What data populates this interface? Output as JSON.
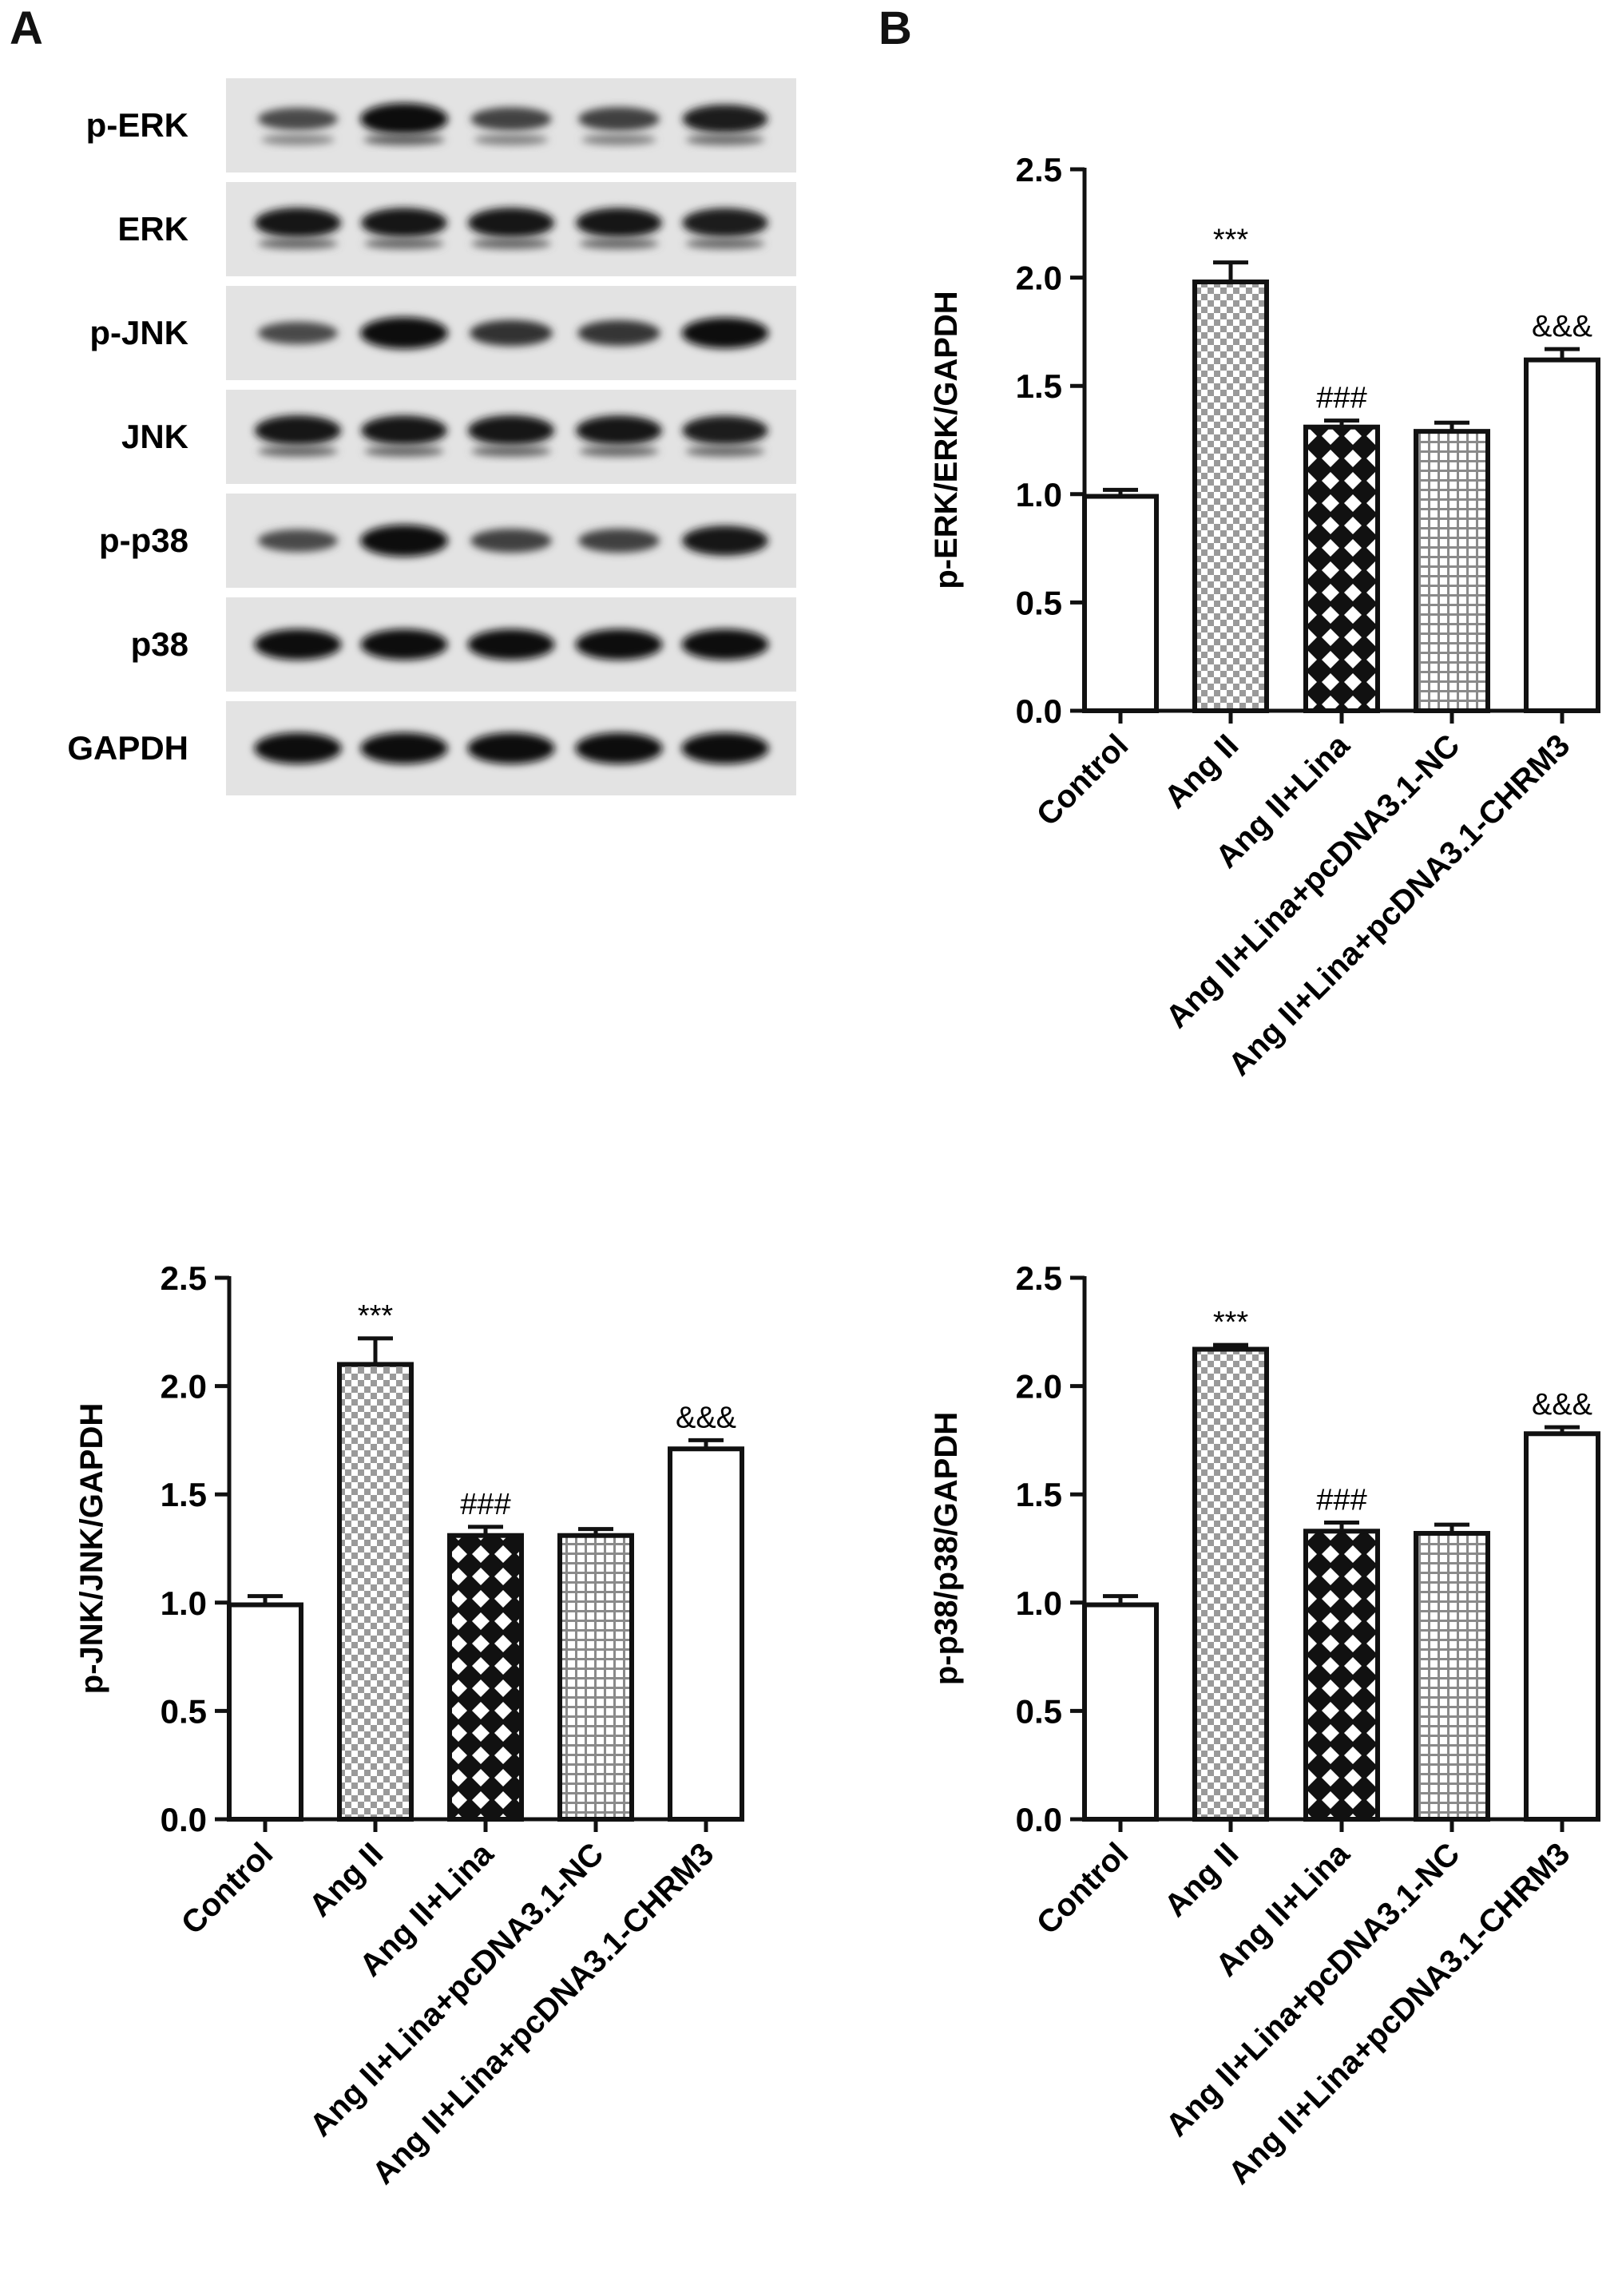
{
  "panels": {
    "a": "A",
    "b": "B"
  },
  "blot": {
    "rows": [
      {
        "label": "p-ERK",
        "intensity": [
          0.55,
          1.0,
          0.6,
          0.62,
          0.85
        ],
        "double": true
      },
      {
        "label": "ERK",
        "intensity": [
          0.92,
          0.9,
          0.92,
          0.9,
          0.88
        ],
        "double": true
      },
      {
        "label": "p-JNK",
        "intensity": [
          0.55,
          1.0,
          0.72,
          0.7,
          0.95
        ],
        "double": false
      },
      {
        "label": "JNK",
        "intensity": [
          0.92,
          0.9,
          0.92,
          0.9,
          0.88
        ],
        "double": true
      },
      {
        "label": "p-p38",
        "intensity": [
          0.55,
          1.0,
          0.62,
          0.62,
          0.9
        ],
        "double": false
      },
      {
        "label": "p38",
        "intensity": [
          0.95,
          0.95,
          0.95,
          0.95,
          0.95
        ],
        "double": false
      },
      {
        "label": "GAPDH",
        "intensity": [
          0.97,
          0.97,
          0.97,
          0.97,
          0.97
        ],
        "double": false
      }
    ]
  },
  "chart_data": [
    {
      "type": "bar",
      "categories": [
        "Control",
        "Ang II",
        "Ang II+Lina",
        "Ang II+Lina+pcDNA3.1-NC",
        "Ang II+Lina+pcDNA3.1-CHRM3"
      ],
      "values": [
        0.99,
        1.98,
        1.31,
        1.29,
        1.62
      ],
      "errors": [
        0.03,
        0.09,
        0.03,
        0.04,
        0.05
      ],
      "annotations": [
        "",
        "***",
        "###",
        "",
        "&&&"
      ],
      "patterns": [
        "none",
        "checker",
        "diamond",
        "grid",
        "none"
      ],
      "xlabel": "",
      "ylabel": "p-ERK/ERK/GAPDH",
      "ylim": [
        0,
        2.5
      ],
      "yticks": [
        "0.0",
        "0.5",
        "1.0",
        "1.5",
        "2.0",
        "2.5"
      ]
    },
    {
      "type": "bar",
      "categories": [
        "Control",
        "Ang II",
        "Ang II+Lina",
        "Ang II+Lina+pcDNA3.1-NC",
        "Ang II+Lina+pcDNA3.1-CHRM3"
      ],
      "values": [
        0.99,
        2.1,
        1.31,
        1.31,
        1.71
      ],
      "errors": [
        0.04,
        0.12,
        0.04,
        0.03,
        0.04
      ],
      "annotations": [
        "",
        "***",
        "###",
        "",
        "&&&"
      ],
      "patterns": [
        "none",
        "checker",
        "diamond",
        "grid",
        "none"
      ],
      "xlabel": "",
      "ylabel": "p-JNK/JNK/GAPDH",
      "ylim": [
        0,
        2.5
      ],
      "yticks": [
        "0.0",
        "0.5",
        "1.0",
        "1.5",
        "2.0",
        "2.5"
      ]
    },
    {
      "type": "bar",
      "categories": [
        "Control",
        "Ang II",
        "Ang II+Lina",
        "Ang II+Lina+pcDNA3.1-NC",
        "Ang II+Lina+pcDNA3.1-CHRM3"
      ],
      "values": [
        0.99,
        2.17,
        1.33,
        1.32,
        1.78
      ],
      "errors": [
        0.04,
        0.02,
        0.04,
        0.04,
        0.03
      ],
      "annotations": [
        "",
        "***",
        "###",
        "",
        "&&&"
      ],
      "patterns": [
        "none",
        "checker",
        "diamond",
        "grid",
        "none"
      ],
      "xlabel": "",
      "ylabel": "p-p38/p38/GAPDH",
      "ylim": [
        0,
        2.5
      ],
      "yticks": [
        "0.0",
        "0.5",
        "1.0",
        "1.5",
        "2.0",
        "2.5"
      ]
    }
  ]
}
